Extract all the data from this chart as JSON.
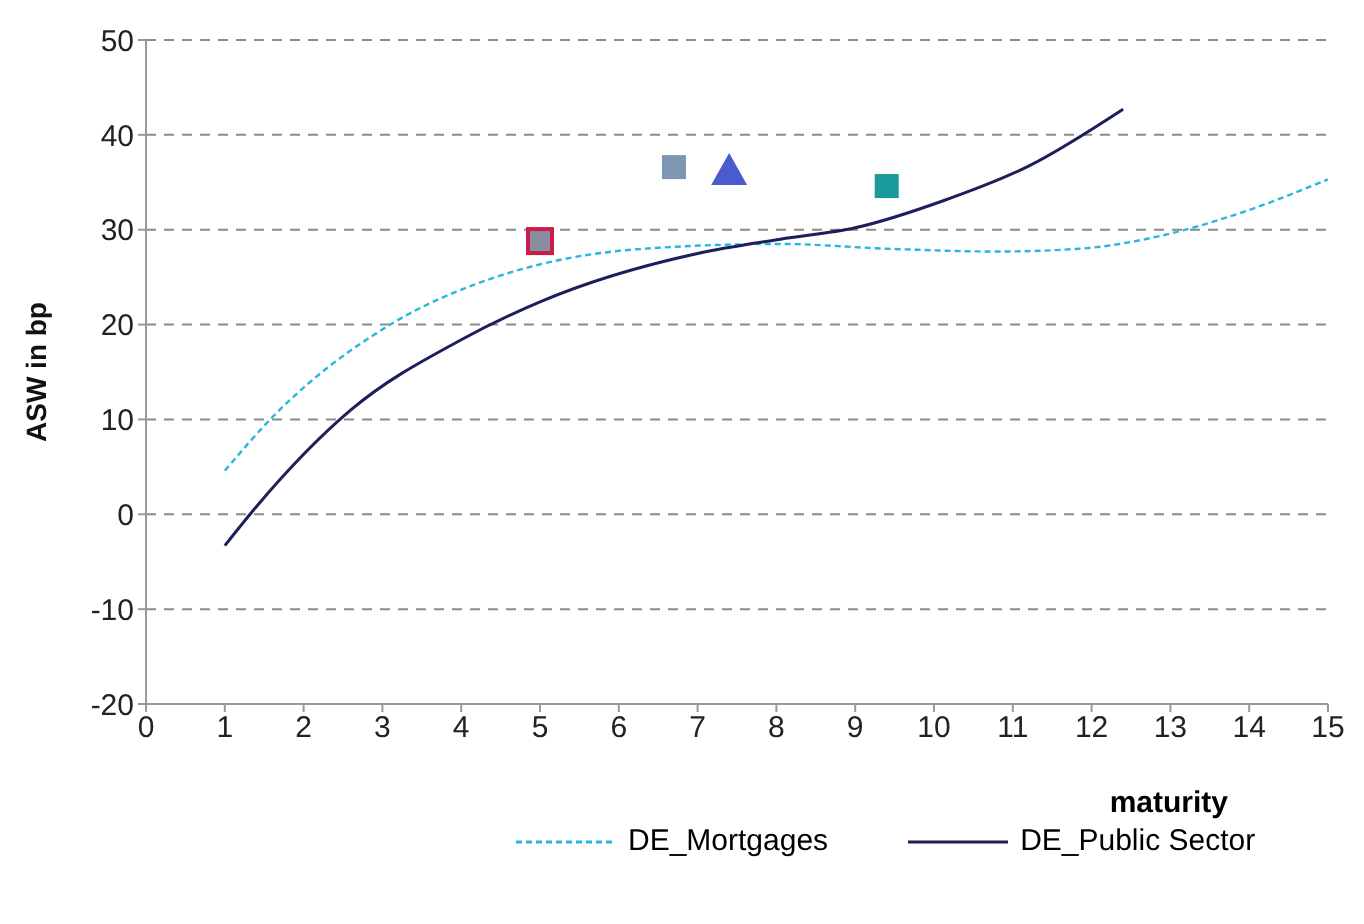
{
  "chart_data": {
    "type": "scatter",
    "xlabel": "maturity",
    "ylabel": "ASW in bp",
    "xlim": [
      0,
      15
    ],
    "xticks": [
      0,
      1,
      2,
      3,
      4,
      5,
      6,
      7,
      8,
      9,
      10,
      11,
      12,
      13,
      14,
      15
    ],
    "ylim": [
      -20,
      50
    ],
    "yticks": [
      -20,
      -10,
      0,
      10,
      20,
      30,
      40,
      50
    ],
    "grid": "y",
    "legend": "bottom",
    "series": [
      {
        "marker": "square",
        "color": "#7f96b2",
        "x": [
          6.7
        ],
        "values": [
          36.6
        ]
      },
      {
        "marker": "triangle",
        "color": "#4a5bcf",
        "x": [
          7.4
        ],
        "values": [
          36.2
        ]
      },
      {
        "marker": "square",
        "color": "#1a9a9a",
        "x": [
          9.4
        ],
        "values": [
          34.6
        ]
      },
      {
        "marker": "square",
        "color": "#cc1a4a",
        "x": [
          5
        ],
        "values": [
          28.8
        ]
      },
      {
        "type": "line",
        "name": "DE_Mortgages",
        "color": "#29b6dc",
        "line_style": "dashed",
        "marker": "none",
        "x": [
          1,
          1.6,
          3.1,
          4.4,
          5.3,
          6.5,
          8.05,
          9.4,
          10.8,
          11.85,
          12.9,
          13.9,
          15
        ],
        "values": [
          4.6,
          10.2,
          20,
          24.9,
          26.9,
          28.1,
          28.5,
          28,
          27.7,
          28,
          29.4,
          31.8,
          35.3
        ]
      },
      {
        "type": "line",
        "name": "DE_Public Sector",
        "color": "#1c1f5c",
        "line_style": "solid",
        "marker": "none",
        "x": [
          1,
          1.4,
          2.6,
          4,
          5,
          7,
          8.05,
          9,
          10.1,
          11.2,
          12.4
        ],
        "values": [
          -3.3,
          0.8,
          11,
          18.4,
          22.4,
          27.5,
          29,
          30.2,
          33,
          36.7,
          42.7
        ]
      }
    ]
  }
}
